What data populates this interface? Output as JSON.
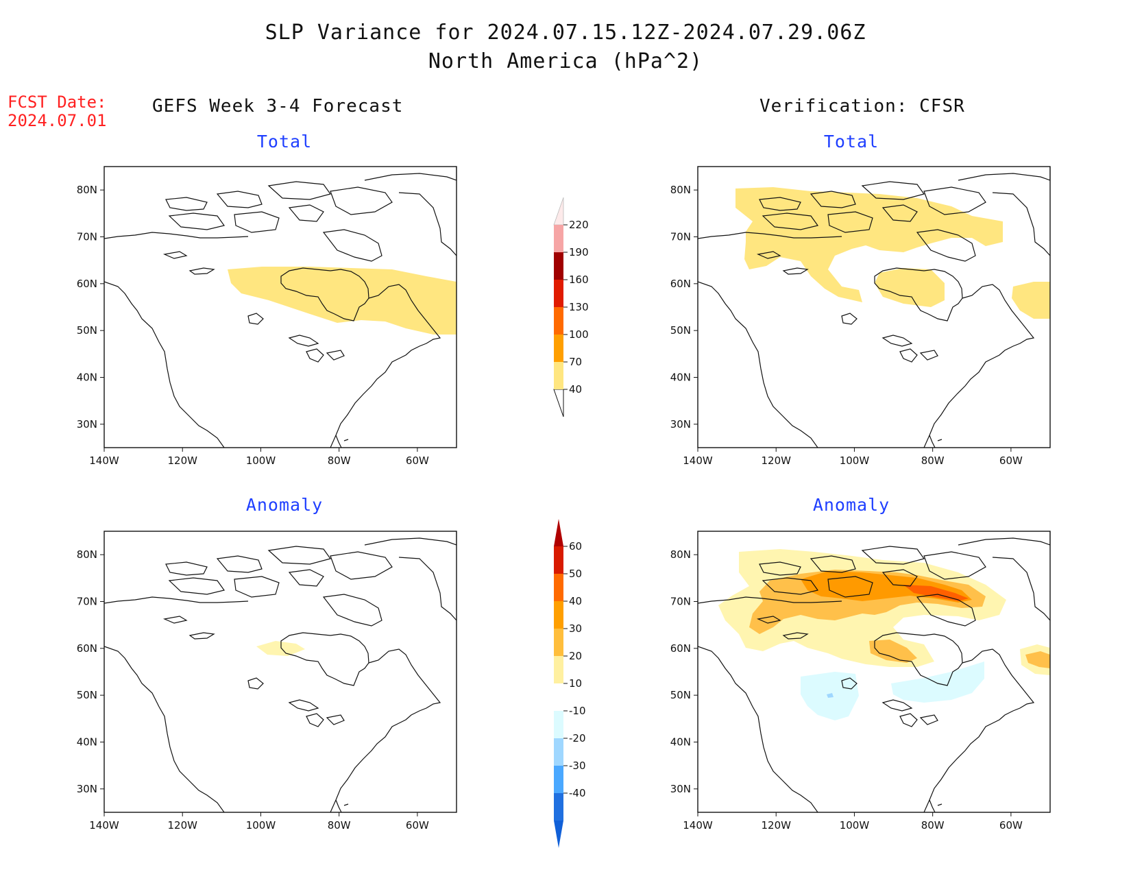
{
  "header": {
    "title_line1": "SLP Variance for 2024.07.15.12Z-2024.07.29.06Z",
    "title_line2": "North America (hPa^2)",
    "fcst_label": "FCST Date:",
    "fcst_date": "2024.07.01"
  },
  "columns": {
    "left": "GEFS Week 3-4 Forecast",
    "right": "Verification: CFSR"
  },
  "panels": [
    {
      "title": "Total",
      "source": "GEFS Week 3-4 Forecast"
    },
    {
      "title": "Total",
      "source": "Verification: CFSR"
    },
    {
      "title": "Anomaly",
      "source": "GEFS Week 3-4 Forecast"
    },
    {
      "title": "Anomaly",
      "source": "Verification: CFSR"
    }
  ],
  "map_axes": {
    "lat_labels": [
      "80N",
      "70N",
      "60N",
      "50N",
      "40N",
      "30N"
    ],
    "lon_labels": [
      "140W",
      "120W",
      "100W",
      "80W",
      "60W"
    ],
    "lat_range": [
      25,
      85
    ],
    "lon_range": [
      -140,
      -50
    ]
  },
  "colorbars": {
    "total": {
      "labels": [
        "220",
        "190",
        "160",
        "130",
        "100",
        "70",
        "40"
      ],
      "colors": [
        "#f6a5a5",
        "#a00000",
        "#e01b00",
        "#ff6a00",
        "#ff9f00",
        "#ffe680"
      ],
      "levels": [
        40,
        70,
        100,
        130,
        160,
        190,
        220
      ]
    },
    "anomaly": {
      "labels": [
        "60",
        "50",
        "40",
        "30",
        "20",
        "10",
        "-10",
        "-20",
        "-30",
        "-40"
      ],
      "colors_top": "#b00000",
      "colors": [
        "#d81a00",
        "#ff6a00",
        "#ff9f00",
        "#ffbe3c",
        "#fff0a0",
        "#ffffff",
        "#dcfbff",
        "#9fd7ff",
        "#4aa8ff",
        "#2070e0"
      ],
      "levels": [
        -40,
        -30,
        -20,
        -10,
        10,
        20,
        30,
        40,
        50,
        60
      ]
    }
  },
  "colors": {
    "title_text": "#111111",
    "panel_title": "#1f3fff",
    "fcst_text": "#ff2020",
    "light_yellow": "#ffe680",
    "pale_yellow": "#fff5b0",
    "orange_light": "#ffc04a",
    "orange": "#ff9a00",
    "dark_orange": "#ff6000",
    "light_blue": "#dcfbff",
    "blue": "#9fd7ff"
  }
}
